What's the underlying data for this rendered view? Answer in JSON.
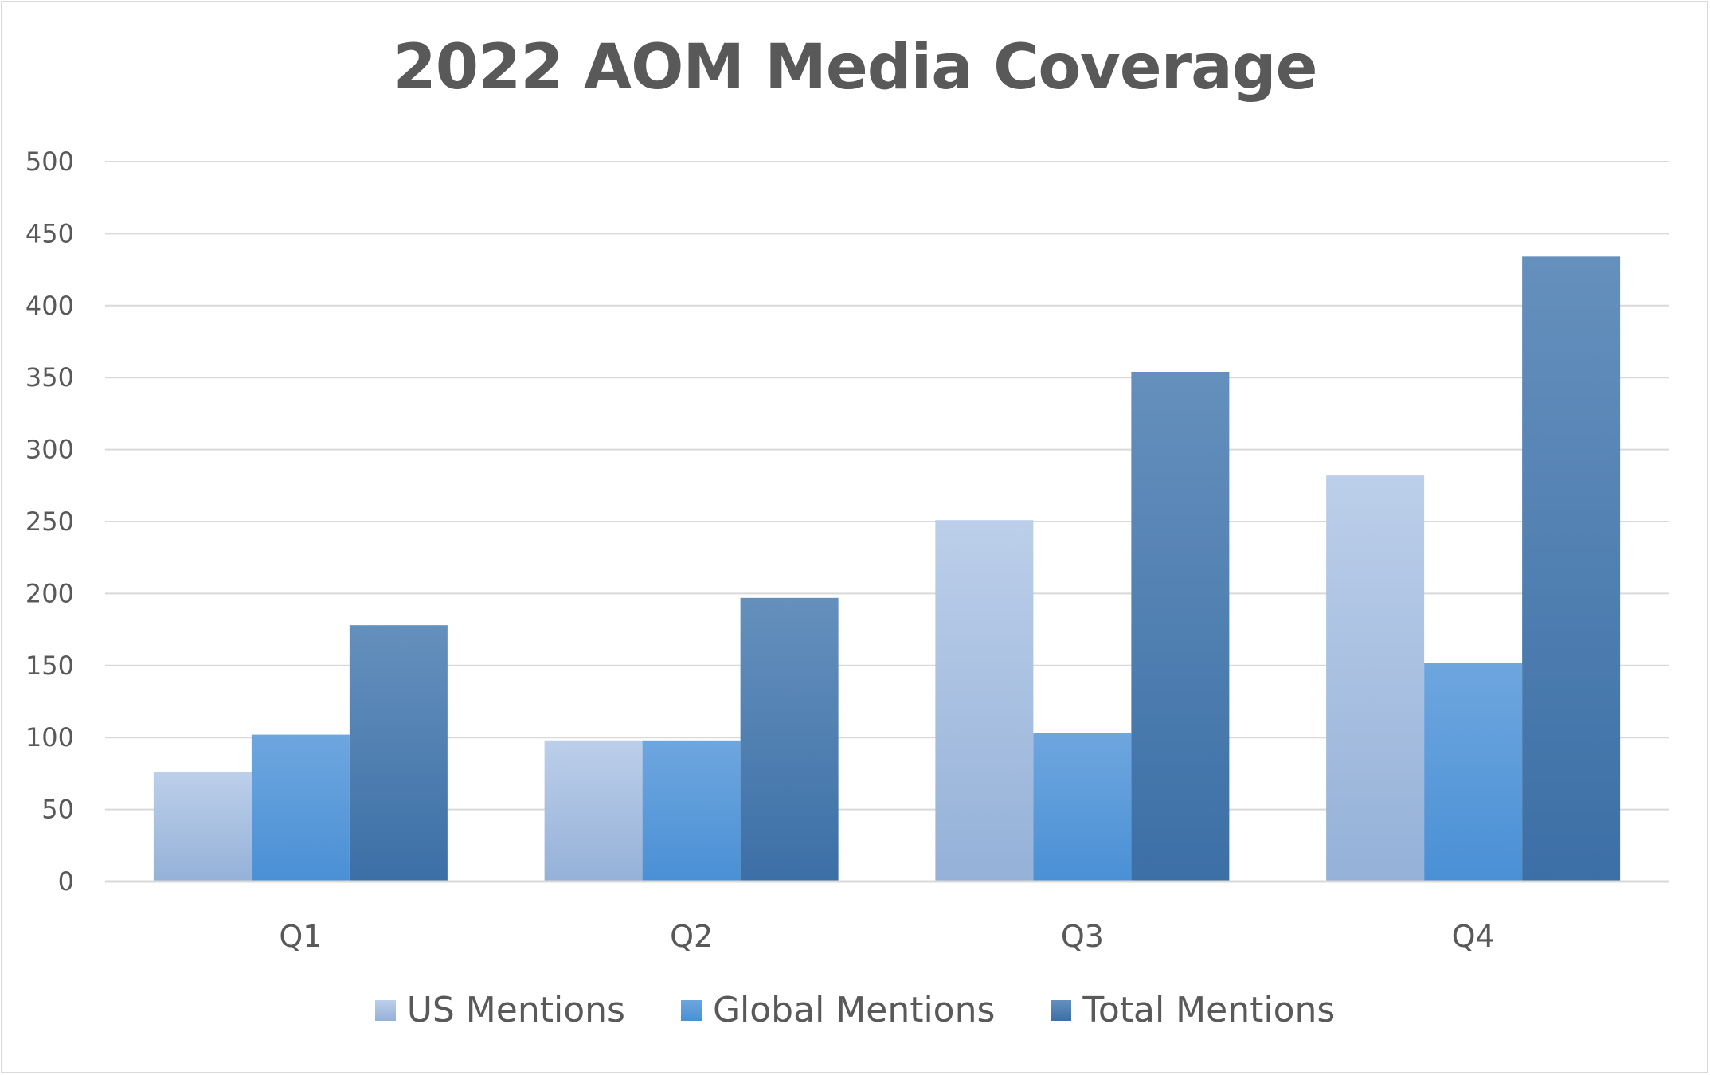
{
  "chart_data": {
    "type": "bar",
    "title": "2022 AOM Media Coverage",
    "xlabel": "",
    "ylabel": "",
    "categories": [
      "Q1",
      "Q2",
      "Q3",
      "Q4"
    ],
    "series": [
      {
        "name": "US Mentions",
        "values": [
          76,
          98,
          251,
          282
        ],
        "color_top": "#bccfea",
        "color_bottom": "#95b1d8"
      },
      {
        "name": "Global Mentions",
        "values": [
          102,
          98,
          103,
          152
        ],
        "color_top": "#6ea6df",
        "color_bottom": "#4a90d5"
      },
      {
        "name": "Total Mentions",
        "values": [
          178,
          197,
          354,
          434
        ],
        "color_top": "#6590bd",
        "color_bottom": "#3c6fa6"
      }
    ],
    "ylim": [
      0,
      500
    ],
    "yticks": [
      0,
      50,
      100,
      150,
      200,
      250,
      300,
      350,
      400,
      450,
      500
    ],
    "grid": true,
    "legend_position": "bottom"
  }
}
